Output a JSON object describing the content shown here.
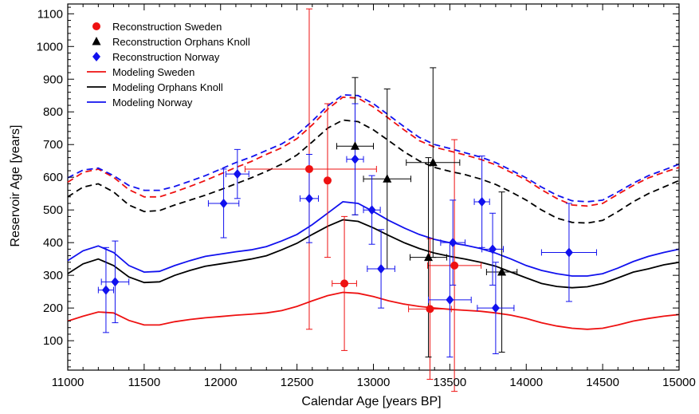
{
  "chart_data": {
    "type": "line",
    "title": "",
    "xlabel": "Calendar Age [years BP]",
    "ylabel": "Reservoir Age [years]",
    "xlim": [
      11000,
      15000
    ],
    "ylim": [
      10,
      1130
    ],
    "x_ticks": [
      11000,
      11500,
      12000,
      12500,
      13000,
      13500,
      14000,
      14500,
      15000
    ],
    "y_ticks": [
      100,
      200,
      300,
      400,
      500,
      600,
      700,
      800,
      900,
      1000,
      1100
    ],
    "x_tick_labels": [
      "11000",
      "11500",
      "12000",
      "12500",
      "13000",
      "13500",
      "14000",
      "14500",
      "15000"
    ],
    "y_tick_labels": [
      "100",
      "200",
      "300",
      "400",
      "500",
      "600",
      "700",
      "800",
      "900",
      "1000",
      "1100"
    ],
    "grid": false,
    "legend_position": "top-left",
    "legend": [
      {
        "label": "Reconstruction Sweden",
        "color": "#ee1111",
        "marker": "circle"
      },
      {
        "label": "Reconstruction Orphans Knoll",
        "color": "#000000",
        "marker": "triangle"
      },
      {
        "label": "Reconstruction Norway",
        "color": "#1111ee",
        "marker": "diamond"
      },
      {
        "label": "Modeling Sweden",
        "color": "#ee1111",
        "marker": "line"
      },
      {
        "label": "Modeling Orphans Knoll",
        "color": "#000000",
        "marker": "line"
      },
      {
        "label": "Modeling Norway",
        "color": "#1111ee",
        "marker": "line"
      }
    ],
    "lines": [
      {
        "color": "#ee1111",
        "dashed": false,
        "x": [
          11000,
          11100,
          11200,
          11300,
          11400,
          11500,
          11600,
          11700,
          11800,
          11900,
          12000,
          12100,
          12200,
          12300,
          12400,
          12500,
          12600,
          12700,
          12800,
          12900,
          13000,
          13100,
          13200,
          13300,
          13400,
          13500,
          13600,
          13700,
          13800,
          13900,
          14000,
          14100,
          14200,
          14300,
          14400,
          14500,
          14600,
          14700,
          14800,
          14900,
          15000
        ],
        "y": [
          160,
          175,
          188,
          185,
          162,
          148,
          148,
          158,
          165,
          170,
          174,
          178,
          181,
          185,
          192,
          205,
          222,
          238,
          248,
          245,
          235,
          222,
          212,
          205,
          200,
          196,
          193,
          190,
          185,
          178,
          168,
          155,
          145,
          138,
          135,
          138,
          148,
          160,
          168,
          175,
          180
        ]
      },
      {
        "color": "#ee1111",
        "dashed": true,
        "x": [
          11000,
          11100,
          11200,
          11300,
          11400,
          11500,
          11600,
          11700,
          11800,
          11900,
          12000,
          12100,
          12200,
          12300,
          12400,
          12500,
          12600,
          12700,
          12800,
          12900,
          13000,
          13100,
          13200,
          13300,
          13400,
          13500,
          13600,
          13700,
          13800,
          13900,
          14000,
          14100,
          14200,
          14300,
          14400,
          14500,
          14600,
          14700,
          14800,
          14900,
          15000
        ],
        "y": [
          585,
          615,
          625,
          600,
          562,
          540,
          540,
          555,
          572,
          590,
          610,
          630,
          648,
          670,
          690,
          718,
          760,
          808,
          845,
          842,
          815,
          780,
          745,
          712,
          692,
          680,
          668,
          655,
          638,
          615,
          592,
          562,
          535,
          515,
          512,
          520,
          548,
          575,
          598,
          615,
          630
        ]
      },
      {
        "color": "#000000",
        "dashed": false,
        "x": [
          11000,
          11100,
          11200,
          11300,
          11400,
          11500,
          11600,
          11700,
          11800,
          11900,
          12000,
          12100,
          12200,
          12300,
          12400,
          12500,
          12600,
          12700,
          12800,
          12900,
          13000,
          13100,
          13200,
          13300,
          13400,
          13500,
          13600,
          13700,
          13800,
          13900,
          14000,
          14100,
          14200,
          14300,
          14400,
          14500,
          14600,
          14700,
          14800,
          14900,
          15000
        ],
        "y": [
          305,
          335,
          350,
          330,
          295,
          278,
          280,
          300,
          315,
          328,
          335,
          342,
          350,
          360,
          378,
          398,
          425,
          450,
          470,
          465,
          445,
          422,
          400,
          382,
          368,
          358,
          350,
          340,
          328,
          310,
          292,
          275,
          266,
          262,
          265,
          275,
          292,
          310,
          320,
          332,
          340
        ]
      },
      {
        "color": "#000000",
        "dashed": true,
        "x": [
          11000,
          11100,
          11200,
          11300,
          11400,
          11500,
          11600,
          11700,
          11800,
          11900,
          12000,
          12100,
          12200,
          12300,
          12400,
          12500,
          12600,
          12700,
          12800,
          12900,
          13000,
          13100,
          13200,
          13300,
          13400,
          13500,
          13600,
          13700,
          13800,
          13900,
          14000,
          14100,
          14200,
          14300,
          14400,
          14500,
          14600,
          14700,
          14800,
          14900,
          15000
        ],
        "y": [
          540,
          570,
          580,
          555,
          515,
          495,
          498,
          515,
          530,
          545,
          562,
          580,
          598,
          618,
          640,
          668,
          708,
          750,
          775,
          770,
          745,
          712,
          678,
          650,
          630,
          618,
          608,
          595,
          578,
          555,
          530,
          500,
          475,
          462,
          460,
          468,
          495,
          525,
          550,
          570,
          590
        ]
      },
      {
        "color": "#1111ee",
        "dashed": false,
        "x": [
          11000,
          11100,
          11200,
          11300,
          11400,
          11500,
          11600,
          11700,
          11800,
          11900,
          12000,
          12100,
          12200,
          12300,
          12400,
          12500,
          12600,
          12700,
          12800,
          12900,
          13000,
          13100,
          13200,
          13300,
          13400,
          13500,
          13600,
          13700,
          13800,
          13900,
          14000,
          14100,
          14200,
          14300,
          14400,
          14500,
          14600,
          14700,
          14800,
          14900,
          15000
        ],
        "y": [
          345,
          375,
          390,
          370,
          330,
          310,
          312,
          330,
          345,
          358,
          365,
          372,
          378,
          388,
          405,
          425,
          455,
          490,
          525,
          520,
          495,
          468,
          445,
          425,
          410,
          400,
          392,
          382,
          368,
          350,
          330,
          315,
          305,
          298,
          298,
          305,
          322,
          342,
          358,
          370,
          380
        ]
      },
      {
        "color": "#1111ee",
        "dashed": true,
        "x": [
          11000,
          11100,
          11200,
          11300,
          11400,
          11500,
          11600,
          11700,
          11800,
          11900,
          12000,
          12100,
          12200,
          12300,
          12400,
          12500,
          12600,
          12700,
          12800,
          12900,
          13000,
          13100,
          13200,
          13300,
          13400,
          13500,
          13600,
          13700,
          13800,
          13900,
          14000,
          14100,
          14200,
          14300,
          14400,
          14500,
          14600,
          14700,
          14800,
          14900,
          15000
        ],
        "y": [
          598,
          622,
          628,
          605,
          575,
          560,
          560,
          572,
          588,
          605,
          625,
          645,
          662,
          682,
          702,
          730,
          772,
          818,
          852,
          850,
          825,
          790,
          755,
          722,
          700,
          688,
          675,
          662,
          645,
          622,
          598,
          570,
          545,
          528,
          525,
          530,
          555,
          582,
          605,
          622,
          640
        ]
      }
    ],
    "series": [
      {
        "name": "Reconstruction Sweden",
        "color": "#ee1111",
        "marker": "circle",
        "points": [
          {
            "x": 12580,
            "y": 625,
            "xerr": [
              420,
              440
            ],
            "yerr": [
              490,
              490
            ]
          },
          {
            "x": 12700,
            "y": 590,
            "xerr": [
              0,
              0
            ],
            "yerr": [
              235,
              235
            ]
          },
          {
            "x": 12810,
            "y": 275,
            "xerr": [
              80,
              80
            ],
            "yerr": [
              205,
              205
            ]
          },
          {
            "x": 13370,
            "y": 197,
            "xerr": [
              140,
              140
            ],
            "yerr": [
              215,
              215
            ]
          },
          {
            "x": 13530,
            "y": 330,
            "xerr": [
              175,
              175
            ],
            "yerr": [
              385,
              385
            ]
          }
        ]
      },
      {
        "name": "Reconstruction Orphans Knoll",
        "color": "#000000",
        "marker": "triangle",
        "points": [
          {
            "x": 12880,
            "y": 695,
            "xerr": [
              120,
              120
            ],
            "yerr": [
              210,
              210
            ]
          },
          {
            "x": 13090,
            "y": 595,
            "xerr": [
              155,
              155
            ],
            "yerr": [
              275,
              275
            ]
          },
          {
            "x": 13360,
            "y": 355,
            "xerr": [
              120,
              120
            ],
            "yerr": [
              305,
              305
            ]
          },
          {
            "x": 13390,
            "y": 645,
            "xerr": [
              175,
              175
            ],
            "yerr": [
              290,
              290
            ]
          },
          {
            "x": 13840,
            "y": 310,
            "xerr": [
              100,
              100
            ],
            "yerr": [
              245,
              245
            ]
          }
        ]
      },
      {
        "name": "Reconstruction Norway",
        "color": "#1111ee",
        "marker": "diamond",
        "points": [
          {
            "x": 11250,
            "y": 255,
            "xerr": [
              50,
              50
            ],
            "yerr": [
              130,
              130
            ]
          },
          {
            "x": 11310,
            "y": 280,
            "xerr": [
              90,
              90
            ],
            "yerr": [
              125,
              125
            ]
          },
          {
            "x": 12020,
            "y": 520,
            "xerr": [
              100,
              100
            ],
            "yerr": [
              105,
              105
            ]
          },
          {
            "x": 12110,
            "y": 610,
            "xerr": [
              75,
              75
            ],
            "yerr": [
              75,
              75
            ]
          },
          {
            "x": 12580,
            "y": 535,
            "xerr": [
              60,
              60
            ],
            "yerr": [
              135,
              135
            ]
          },
          {
            "x": 12880,
            "y": 655,
            "xerr": [
              55,
              55
            ],
            "yerr": [
              170,
              170
            ]
          },
          {
            "x": 12990,
            "y": 500,
            "xerr": [
              55,
              55
            ],
            "yerr": [
              105,
              105
            ]
          },
          {
            "x": 13050,
            "y": 320,
            "xerr": [
              90,
              90
            ],
            "yerr": [
              120,
              120
            ]
          },
          {
            "x": 13500,
            "y": 225,
            "xerr": [
              140,
              140
            ],
            "yerr": [
              175,
              175
            ]
          },
          {
            "x": 13520,
            "y": 400,
            "xerr": [
              80,
              80
            ],
            "yerr": [
              130,
              130
            ]
          },
          {
            "x": 13710,
            "y": 525,
            "xerr": [
              50,
              50
            ],
            "yerr": [
              140,
              140
            ]
          },
          {
            "x": 13780,
            "y": 380,
            "xerr": [
              70,
              70
            ],
            "yerr": [
              110,
              110
            ]
          },
          {
            "x": 13800,
            "y": 200,
            "xerr": [
              120,
              120
            ],
            "yerr": [
              140,
              140
            ]
          },
          {
            "x": 14280,
            "y": 370,
            "xerr": [
              180,
              180
            ],
            "yerr": [
              150,
              150
            ]
          }
        ]
      }
    ]
  }
}
